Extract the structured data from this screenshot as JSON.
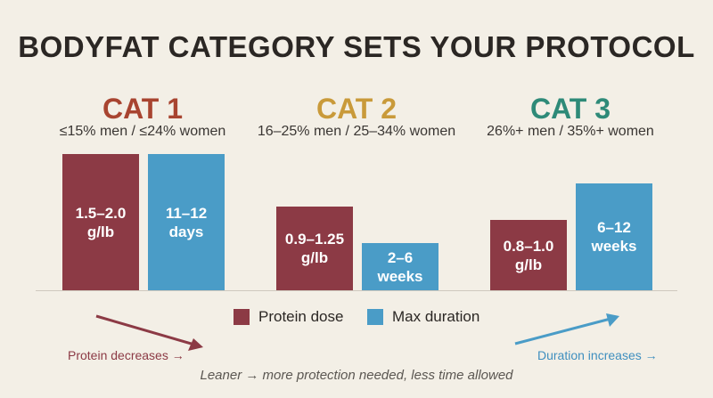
{
  "colors": {
    "background": "#f3efe6",
    "protein": "#8c3a45",
    "duration": "#4a9cc7",
    "cat1": "#a84430",
    "cat2": "#c99a3a",
    "cat3": "#2e8a78"
  },
  "chart_data": {
    "type": "bar",
    "title": "BODYFAT CATEGORY SETS YOUR PROTOCOL",
    "categories": [
      {
        "label": "CAT 1",
        "subtitle": "≤15% men / ≤24% women"
      },
      {
        "label": "CAT 2",
        "subtitle": "16–25% men / 25–34% women"
      },
      {
        "label": "CAT 3",
        "subtitle": "26%+ men / 35%+ women"
      }
    ],
    "series": [
      {
        "name": "Protein dose",
        "values": [
          1.75,
          1.07,
          0.9
        ],
        "labels": [
          "1.5–2.0\ng/lb",
          "0.9–1.25\ng/lb",
          "0.8–1.0\ng/lb"
        ]
      },
      {
        "name": "Max duration",
        "values": [
          11.5,
          4,
          9
        ],
        "labels": [
          "11–12\ndays",
          "2–6\nweeks",
          "6–12\nweeks"
        ]
      }
    ],
    "legend": "bottom-center",
    "grid": false,
    "annotations": {
      "left_trend": "Protein decreases →",
      "right_trend": "Duration increases →",
      "footer": "Leaner → more protection needed, less time allowed"
    }
  }
}
